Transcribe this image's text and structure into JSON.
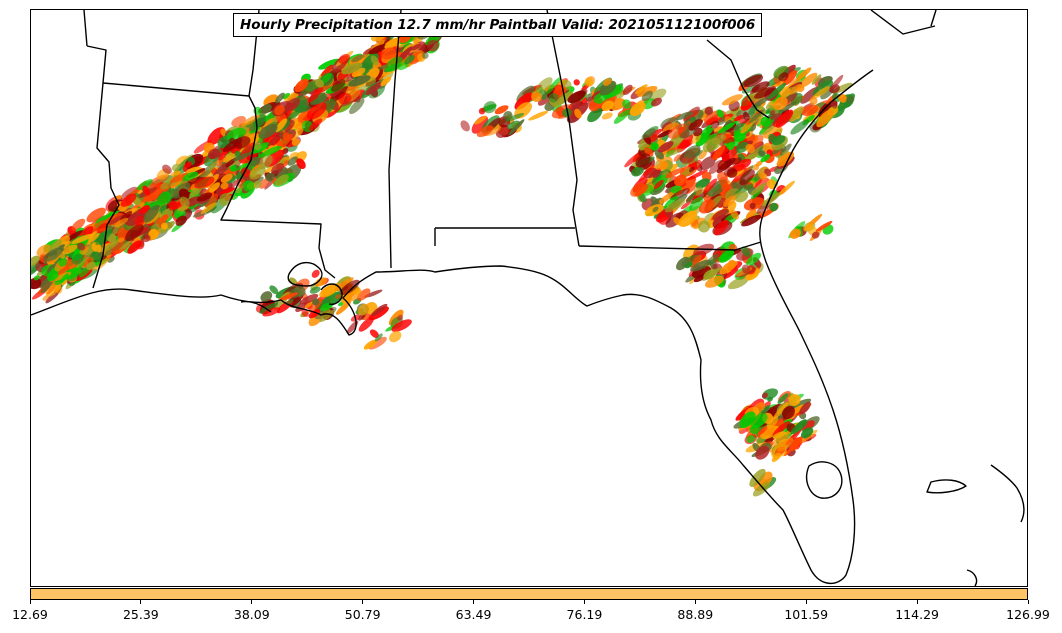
{
  "title": "Hourly Precipitation 12.7 mm/hr Paintball Valid: 202105112100f006",
  "colorbar": {
    "color": "#ffc466",
    "ticks": [
      "12.69",
      "25.39",
      "38.09",
      "50.79",
      "63.49",
      "76.19",
      "88.89",
      "101.59",
      "114.29",
      "126.99"
    ]
  },
  "member_colors": [
    "#ff0000",
    "#ff8c00",
    "#ffa500",
    "#00cc00",
    "#228b22",
    "#8b0000",
    "#556b2f",
    "#9aa020",
    "#b22222",
    "#ff4500"
  ],
  "map": {
    "region": "Southeastern United States and Gulf of Mexico",
    "boundaries": "state and coastline lines in black"
  }
}
